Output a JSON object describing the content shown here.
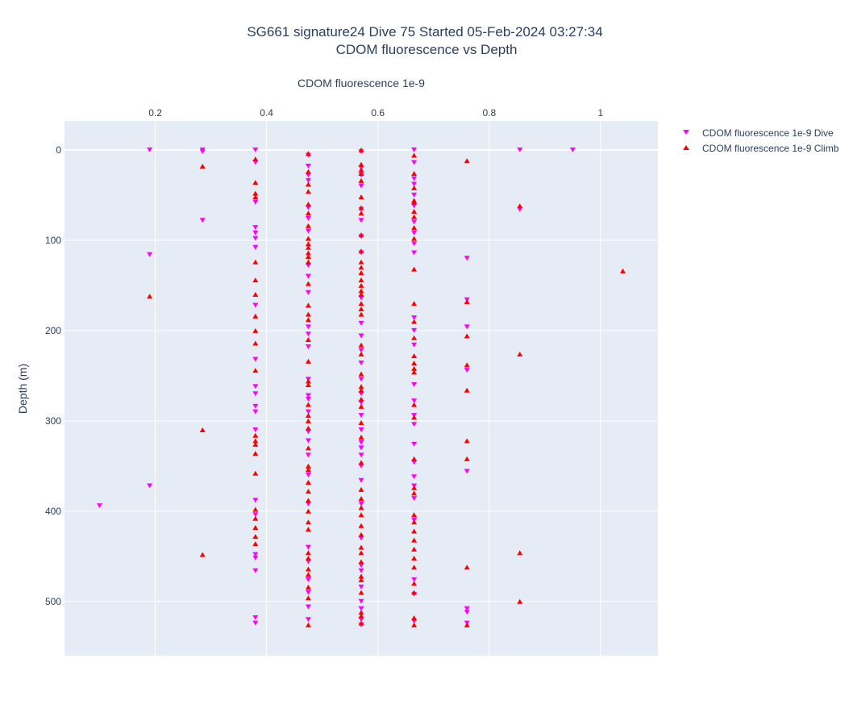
{
  "chart_data": {
    "type": "scatter",
    "title": "SG661 signature24 Dive 75 Started 05-Feb-2024 03:27:34",
    "subtitle": "CDOM fluorescence vs Depth",
    "xlabel": "CDOM fluorescence 1e-9",
    "ylabel": "Depth (m)",
    "x_axis_position": "top",
    "y_reversed": true,
    "xlim": [
      0.037,
      1.103
    ],
    "ylim": [
      560,
      -32
    ],
    "x_ticks": [
      0.2,
      0.4,
      0.6,
      0.8,
      1
    ],
    "x_tick_labels": [
      "0.2",
      "0.4",
      "0.6",
      "0.8",
      "1"
    ],
    "y_ticks": [
      0,
      100,
      200,
      300,
      400,
      500
    ],
    "y_tick_labels": [
      "0",
      "100",
      "200",
      "300",
      "400",
      "500"
    ],
    "grid": true,
    "legend_position": "top-right",
    "series": [
      {
        "name": "CDOM fluorescence 1e-9 Dive",
        "marker": "triangle-down",
        "color": "#ff00ff",
        "points": [
          [
            0.19,
            0
          ],
          [
            0.285,
            0
          ],
          [
            0.285,
            2
          ],
          [
            0.38,
            0
          ],
          [
            0.475,
            6
          ],
          [
            0.57,
            2
          ],
          [
            0.665,
            0
          ],
          [
            0.855,
            0
          ],
          [
            0.95,
            0
          ],
          [
            0.38,
            14
          ],
          [
            0.475,
            18
          ],
          [
            0.57,
            20
          ],
          [
            0.665,
            14
          ],
          [
            0.475,
            28
          ],
          [
            0.475,
            34
          ],
          [
            0.57,
            28
          ],
          [
            0.57,
            40
          ],
          [
            0.665,
            32
          ],
          [
            0.665,
            38
          ],
          [
            0.665,
            50
          ],
          [
            0.38,
            58
          ],
          [
            0.475,
            64
          ],
          [
            0.475,
            76
          ],
          [
            0.57,
            66
          ],
          [
            0.57,
            78
          ],
          [
            0.665,
            62
          ],
          [
            0.665,
            80
          ],
          [
            0.665,
            92
          ],
          [
            0.285,
            78
          ],
          [
            0.855,
            66
          ],
          [
            0.38,
            86
          ],
          [
            0.38,
            92
          ],
          [
            0.38,
            98
          ],
          [
            0.38,
            108
          ],
          [
            0.475,
            90
          ],
          [
            0.475,
            128
          ],
          [
            0.475,
            140
          ],
          [
            0.475,
            158
          ],
          [
            0.57,
            96
          ],
          [
            0.57,
            114
          ],
          [
            0.57,
            164
          ],
          [
            0.665,
            104
          ],
          [
            0.665,
            114
          ],
          [
            0.19,
            116
          ],
          [
            0.76,
            120
          ],
          [
            0.76,
            166
          ],
          [
            0.38,
            172
          ],
          [
            0.57,
            192
          ],
          [
            0.57,
            206
          ],
          [
            0.475,
            196
          ],
          [
            0.475,
            204
          ],
          [
            0.475,
            218
          ],
          [
            0.665,
            186
          ],
          [
            0.665,
            200
          ],
          [
            0.665,
            216
          ],
          [
            0.76,
            196
          ],
          [
            0.38,
            232
          ],
          [
            0.57,
            222
          ],
          [
            0.57,
            236
          ],
          [
            0.76,
            244
          ],
          [
            0.38,
            262
          ],
          [
            0.38,
            270
          ],
          [
            0.38,
            284
          ],
          [
            0.38,
            290
          ],
          [
            0.475,
            254
          ],
          [
            0.475,
            272
          ],
          [
            0.475,
            276
          ],
          [
            0.475,
            290
          ],
          [
            0.57,
            254
          ],
          [
            0.57,
            270
          ],
          [
            0.57,
            280
          ],
          [
            0.57,
            294
          ],
          [
            0.665,
            260
          ],
          [
            0.665,
            278
          ],
          [
            0.665,
            294
          ],
          [
            0.665,
            304
          ],
          [
            0.38,
            310
          ],
          [
            0.475,
            312
          ],
          [
            0.475,
            322
          ],
          [
            0.475,
            338
          ],
          [
            0.57,
            310
          ],
          [
            0.57,
            324
          ],
          [
            0.57,
            330
          ],
          [
            0.57,
            338
          ],
          [
            0.57,
            350
          ],
          [
            0.665,
            326
          ],
          [
            0.665,
            346
          ],
          [
            0.665,
            362
          ],
          [
            0.665,
            372
          ],
          [
            0.76,
            356
          ],
          [
            0.19,
            372
          ],
          [
            0.1,
            394
          ],
          [
            0.38,
            388
          ],
          [
            0.38,
            404
          ],
          [
            0.475,
            360
          ],
          [
            0.475,
            392
          ],
          [
            0.57,
            366
          ],
          [
            0.57,
            392
          ],
          [
            0.57,
            430
          ],
          [
            0.665,
            386
          ],
          [
            0.665,
            410
          ],
          [
            0.38,
            448
          ],
          [
            0.38,
            452
          ],
          [
            0.38,
            466
          ],
          [
            0.475,
            440
          ],
          [
            0.475,
            456
          ],
          [
            0.475,
            476
          ],
          [
            0.57,
            460
          ],
          [
            0.57,
            466
          ],
          [
            0.57,
            484
          ],
          [
            0.57,
            500
          ],
          [
            0.57,
            508
          ],
          [
            0.665,
            476
          ],
          [
            0.665,
            492
          ],
          [
            0.76,
            508
          ],
          [
            0.76,
            512
          ],
          [
            0.38,
            518
          ],
          [
            0.38,
            524
          ],
          [
            0.475,
            490
          ],
          [
            0.475,
            506
          ],
          [
            0.475,
            520
          ],
          [
            0.57,
            520
          ],
          [
            0.57,
            526
          ],
          [
            0.665,
            522
          ],
          [
            0.76,
            524
          ]
        ]
      },
      {
        "name": "CDOM fluorescence 1e-9 Climb",
        "marker": "triangle-up",
        "color": "#ff0000",
        "points": [
          [
            0.285,
            18
          ],
          [
            0.76,
            12
          ],
          [
            0.475,
            4
          ],
          [
            0.57,
            0
          ],
          [
            0.665,
            6
          ],
          [
            0.38,
            10
          ],
          [
            0.57,
            16
          ],
          [
            0.57,
            22
          ],
          [
            0.57,
            26
          ],
          [
            0.665,
            26
          ],
          [
            0.475,
            24
          ],
          [
            0.475,
            38
          ],
          [
            0.38,
            36
          ],
          [
            0.38,
            48
          ],
          [
            0.38,
            52
          ],
          [
            0.57,
            34
          ],
          [
            0.57,
            52
          ],
          [
            0.475,
            46
          ],
          [
            0.475,
            60
          ],
          [
            0.665,
            42
          ],
          [
            0.665,
            56
          ],
          [
            0.665,
            58
          ],
          [
            0.665,
            68
          ],
          [
            0.665,
            74
          ],
          [
            0.665,
            86
          ],
          [
            0.665,
            98
          ],
          [
            0.665,
            132
          ],
          [
            0.475,
            70
          ],
          [
            0.475,
            84
          ],
          [
            0.475,
            98
          ],
          [
            0.475,
            104
          ],
          [
            0.475,
            108
          ],
          [
            0.475,
            114
          ],
          [
            0.475,
            118
          ],
          [
            0.475,
            124
          ],
          [
            0.57,
            64
          ],
          [
            0.57,
            70
          ],
          [
            0.57,
            94
          ],
          [
            0.57,
            112
          ],
          [
            0.57,
            124
          ],
          [
            0.57,
            130
          ],
          [
            0.57,
            136
          ],
          [
            0.57,
            144
          ],
          [
            0.57,
            150
          ],
          [
            0.57,
            156
          ],
          [
            0.57,
            160
          ],
          [
            0.57,
            170
          ],
          [
            0.38,
            124
          ],
          [
            0.38,
            144
          ],
          [
            0.38,
            160
          ],
          [
            0.38,
            184
          ],
          [
            0.38,
            200
          ],
          [
            0.38,
            214
          ],
          [
            0.38,
            244
          ],
          [
            0.855,
            62
          ],
          [
            1.04,
            134
          ],
          [
            0.19,
            162
          ],
          [
            0.76,
            168
          ],
          [
            0.475,
            148
          ],
          [
            0.475,
            172
          ],
          [
            0.475,
            182
          ],
          [
            0.475,
            188
          ],
          [
            0.475,
            210
          ],
          [
            0.57,
            176
          ],
          [
            0.57,
            182
          ],
          [
            0.57,
            216
          ],
          [
            0.57,
            226
          ],
          [
            0.57,
            248
          ],
          [
            0.57,
            262
          ],
          [
            0.57,
            266
          ],
          [
            0.57,
            276
          ],
          [
            0.57,
            284
          ],
          [
            0.665,
            170
          ],
          [
            0.665,
            190
          ],
          [
            0.665,
            208
          ],
          [
            0.665,
            228
          ],
          [
            0.665,
            236
          ],
          [
            0.665,
            242
          ],
          [
            0.665,
            246
          ],
          [
            0.665,
            282
          ],
          [
            0.665,
            296
          ],
          [
            0.76,
            206
          ],
          [
            0.76,
            238
          ],
          [
            0.76,
            266
          ],
          [
            0.855,
            226
          ],
          [
            0.475,
            234
          ],
          [
            0.475,
            256
          ],
          [
            0.475,
            260
          ],
          [
            0.475,
            282
          ],
          [
            0.475,
            294
          ],
          [
            0.475,
            300
          ],
          [
            0.285,
            310
          ],
          [
            0.38,
            316
          ],
          [
            0.38,
            322
          ],
          [
            0.38,
            326
          ],
          [
            0.38,
            336
          ],
          [
            0.38,
            358
          ],
          [
            0.475,
            308
          ],
          [
            0.475,
            330
          ],
          [
            0.475,
            350
          ],
          [
            0.475,
            354
          ],
          [
            0.475,
            368
          ],
          [
            0.475,
            378
          ],
          [
            0.475,
            388
          ],
          [
            0.57,
            302
          ],
          [
            0.57,
            318
          ],
          [
            0.57,
            346
          ],
          [
            0.57,
            376
          ],
          [
            0.57,
            386
          ],
          [
            0.57,
            396
          ],
          [
            0.57,
            404
          ],
          [
            0.665,
            342
          ],
          [
            0.665,
            374
          ],
          [
            0.665,
            380
          ],
          [
            0.665,
            404
          ],
          [
            0.665,
            412
          ],
          [
            0.665,
            422
          ],
          [
            0.76,
            322
          ],
          [
            0.76,
            342
          ],
          [
            0.38,
            398
          ],
          [
            0.38,
            408
          ],
          [
            0.38,
            418
          ],
          [
            0.38,
            428
          ],
          [
            0.38,
            436
          ],
          [
            0.475,
            400
          ],
          [
            0.475,
            412
          ],
          [
            0.475,
            420
          ],
          [
            0.475,
            446
          ],
          [
            0.475,
            452
          ],
          [
            0.475,
            464
          ],
          [
            0.475,
            470
          ],
          [
            0.57,
            416
          ],
          [
            0.57,
            426
          ],
          [
            0.57,
            440
          ],
          [
            0.57,
            446
          ],
          [
            0.57,
            456
          ],
          [
            0.57,
            472
          ],
          [
            0.57,
            476
          ],
          [
            0.57,
            490
          ],
          [
            0.665,
            432
          ],
          [
            0.665,
            442
          ],
          [
            0.665,
            452
          ],
          [
            0.665,
            462
          ],
          [
            0.665,
            480
          ],
          [
            0.665,
            490
          ],
          [
            0.665,
            518
          ],
          [
            0.285,
            448
          ],
          [
            0.855,
            446
          ],
          [
            0.855,
            500
          ],
          [
            0.76,
            462
          ],
          [
            0.475,
            484
          ],
          [
            0.475,
            496
          ],
          [
            0.475,
            526
          ],
          [
            0.57,
            512
          ],
          [
            0.57,
            516
          ],
          [
            0.57,
            524
          ],
          [
            0.665,
            526
          ],
          [
            0.76,
            526
          ]
        ]
      }
    ]
  }
}
